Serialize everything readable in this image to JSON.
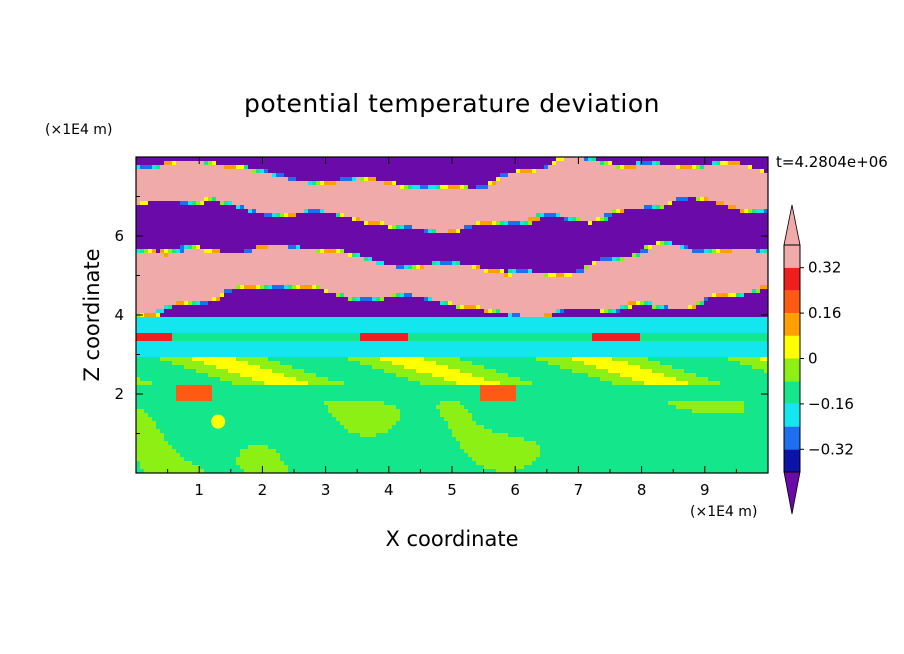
{
  "chart_data": {
    "type": "heatmap",
    "title": "potential temperature deviation",
    "xlabel": "X coordinate",
    "ylabel": "Z coordinate",
    "x_unit": "(×1E4 m)",
    "y_unit": "(×1E4 m)",
    "time_label": "t=4.2804e+06",
    "xlim": [
      0,
      10
    ],
    "ylim": [
      0,
      8
    ],
    "x_ticks": [
      1,
      2,
      3,
      4,
      5,
      6,
      7,
      8,
      9
    ],
    "y_ticks": [
      2,
      4,
      6
    ],
    "colorbar": {
      "levels": [
        -0.4,
        -0.32,
        -0.24,
        -0.16,
        -0.08,
        0,
        0.08,
        0.16,
        0.24,
        0.32,
        0.4
      ],
      "labels": [
        {
          "value": 0.32,
          "text": "0.32"
        },
        {
          "value": 0.16,
          "text": "0.16"
        },
        {
          "value": 0,
          "text": "0"
        },
        {
          "value": -0.16,
          "text": "−0.16"
        },
        {
          "value": -0.32,
          "text": "−0.32"
        }
      ],
      "colors": [
        "#6a0aa8",
        "#0a14a8",
        "#1e6ef0",
        "#14e6f0",
        "#14e68c",
        "#8cf014",
        "#ffff00",
        "#ffa000",
        "#ff5a14",
        "#f01e1e",
        "#f0aaaa"
      ],
      "extend": "both"
    }
  }
}
